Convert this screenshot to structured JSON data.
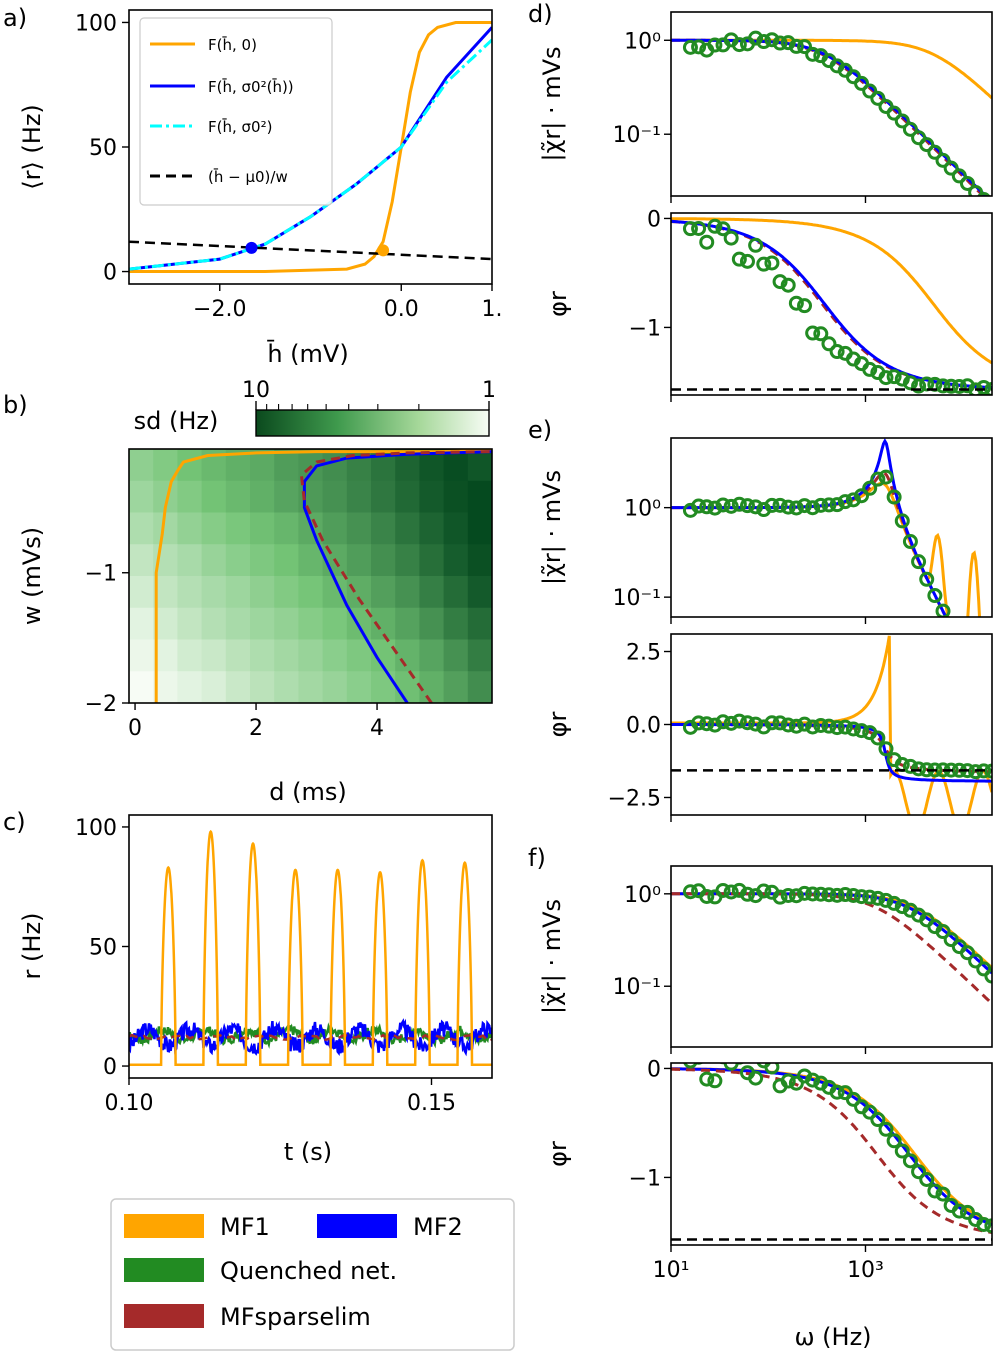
{
  "colors": {
    "mf1": "#FFA500",
    "mf2": "#0000FF",
    "quenched": "#228B22",
    "mfsparse": "#A52A2A",
    "cyan": "#00FFFF",
    "black": "#000000"
  },
  "chart_data": [
    {
      "panel": "a",
      "panel_label": "a)",
      "type": "line",
      "xlabel": "h̄ (mV)",
      "ylabel": "⟨r⟩ (Hz)",
      "xlim": [
        -3.0,
        1.0
      ],
      "ylim": [
        -5,
        105
      ],
      "xticks": [
        -2.0,
        0.0,
        1.0
      ],
      "xtick_labels": [
        "−2.0",
        "0.0",
        "1."
      ],
      "yticks": [
        0,
        50,
        100
      ],
      "ytick_labels": [
        "0",
        "50",
        "100"
      ],
      "legend": [
        "F(h̄, 0)",
        "F(h̄, σ0²(h̄))",
        "F(h̄, σ0²)",
        "(h̄ − μ0)/w"
      ],
      "legend_placement": "top-left",
      "series": [
        {
          "name": "F(h̄, 0)",
          "x": [
            -3.0,
            -1.5,
            -0.6,
            -0.4,
            -0.3,
            -0.2,
            -0.1,
            0.0,
            0.1,
            0.2,
            0.3,
            0.4,
            0.6,
            1.0
          ],
          "y": [
            0,
            0,
            1,
            3,
            6,
            12,
            28,
            50,
            72,
            88,
            95,
            98,
            100,
            100
          ]
        },
        {
          "name": "F(h̄, σ0²(h̄))",
          "x": [
            -3.0,
            -2.5,
            -2.0,
            -1.5,
            -1.0,
            -0.5,
            0.0,
            0.5,
            1.0
          ],
          "y": [
            1,
            3,
            5,
            11,
            22,
            35,
            50,
            78,
            98
          ]
        },
        {
          "name": "F(h̄, σ0²)",
          "x": [
            -3.0,
            -2.5,
            -2.0,
            -1.5,
            -1.0,
            -0.5,
            0.0,
            0.5,
            1.0
          ],
          "y": [
            1,
            3,
            5,
            11,
            22,
            35,
            50,
            76,
            93
          ]
        },
        {
          "name": "(h̄ − μ0)/w",
          "x": [
            -3.0,
            1.0
          ],
          "y": [
            12,
            5
          ]
        }
      ],
      "points": [
        {
          "name": "MF2 fixed point",
          "x": -1.65,
          "y": 9.5,
          "color": "mf2"
        },
        {
          "name": "MF1 fixed point",
          "x": -0.2,
          "y": 8.5,
          "color": "mf1"
        }
      ]
    },
    {
      "panel": "b",
      "panel_label": "b)",
      "type": "heatmap",
      "xlabel": "d (ms)",
      "ylabel": "w (mVs)",
      "xlim": [
        -0.1,
        5.9
      ],
      "ylim": [
        -2.0,
        -0.05
      ],
      "xticks": [
        0,
        2,
        4
      ],
      "yticks": [
        -2,
        -1
      ],
      "ytick_labels": [
        "−2",
        "−1"
      ],
      "colorbar_label": "sd (Hz)",
      "colorbar_ticks": [
        "10",
        "1"
      ],
      "columns_d": [
        0.2,
        0.6,
        1.0,
        1.4,
        1.8,
        2.2,
        2.6,
        3.0,
        3.4,
        3.8,
        4.2,
        4.6,
        5.0,
        5.4,
        5.75
      ],
      "rows_w": [
        -0.2,
        -0.45,
        -0.7,
        -0.95,
        -1.2,
        -1.45,
        -1.7,
        -1.9
      ],
      "sd_values": [
        [
          2.5,
          2.8,
          3.2,
          3.5,
          3.8,
          4.0,
          4.5,
          4.8,
          5.2,
          5.8,
          6.5,
          7.5,
          8.5,
          9.2,
          8.5
        ],
        [
          2.2,
          2.5,
          2.8,
          3.2,
          3.5,
          3.8,
          4.2,
          4.6,
          5.0,
          5.6,
          6.3,
          7.2,
          8.2,
          9.0,
          9.5
        ],
        [
          1.9,
          2.1,
          2.4,
          2.7,
          3.0,
          3.3,
          3.6,
          4.0,
          4.5,
          5.0,
          5.6,
          6.5,
          7.5,
          8.5,
          9.5
        ],
        [
          1.6,
          1.8,
          2.0,
          2.3,
          2.6,
          2.9,
          3.2,
          3.6,
          4.0,
          4.5,
          5.1,
          5.8,
          6.8,
          8.0,
          9.0
        ],
        [
          1.4,
          1.6,
          1.8,
          2.0,
          2.2,
          2.5,
          2.8,
          3.1,
          3.5,
          3.9,
          4.4,
          5.0,
          5.9,
          7.0,
          8.2
        ],
        [
          1.2,
          1.4,
          1.6,
          1.8,
          2.0,
          2.2,
          2.4,
          2.7,
          3.0,
          3.4,
          3.8,
          4.3,
          5.0,
          6.0,
          7.0
        ],
        [
          1.1,
          1.2,
          1.4,
          1.5,
          1.7,
          1.9,
          2.1,
          2.3,
          2.6,
          2.9,
          3.2,
          3.7,
          4.2,
          5.0,
          6.0
        ],
        [
          1.0,
          1.1,
          1.2,
          1.3,
          1.5,
          1.7,
          1.9,
          2.1,
          2.3,
          2.6,
          2.9,
          3.3,
          3.8,
          4.4,
          5.2
        ]
      ],
      "series": [
        {
          "name": "MF1",
          "d": [
            0.35,
            0.35,
            0.45,
            0.5,
            0.55,
            0.6,
            0.7,
            0.8,
            1.2,
            2.0,
            3.0,
            4.0,
            5.0,
            5.9
          ],
          "w": [
            -2.0,
            -1.0,
            -0.7,
            -0.5,
            -0.4,
            -0.3,
            -0.22,
            -0.15,
            -0.1,
            -0.08,
            -0.07,
            -0.07,
            -0.07,
            -0.06
          ]
        },
        {
          "name": "MF2",
          "d": [
            4.5,
            4.0,
            3.5,
            3.0,
            2.8,
            2.8,
            3.0,
            3.5,
            4.5,
            5.9
          ],
          "w": [
            -2.0,
            -1.65,
            -1.25,
            -0.75,
            -0.5,
            -0.3,
            -0.18,
            -0.12,
            -0.09,
            -0.07
          ]
        },
        {
          "name": "MFsparselim",
          "d": [
            4.9,
            4.3,
            3.7,
            3.1,
            2.8,
            2.75,
            3.0,
            3.6,
            4.5,
            5.9
          ],
          "w": [
            -2.0,
            -1.6,
            -1.2,
            -0.75,
            -0.45,
            -0.25,
            -0.15,
            -0.1,
            -0.08,
            -0.07
          ]
        }
      ]
    },
    {
      "panel": "c",
      "panel_label": "c)",
      "type": "line",
      "xlabel": "t (s)",
      "ylabel": "r (Hz)",
      "xlim": [
        0.1,
        0.16
      ],
      "ylim": [
        -5,
        105
      ],
      "xticks": [
        0.1,
        0.15
      ],
      "xtick_labels": [
        "0.10",
        "0.15"
      ],
      "yticks": [
        0,
        50,
        100
      ],
      "burst_times": [
        0.1065,
        0.1135,
        0.1205,
        0.1275,
        0.1345,
        0.1415,
        0.1485,
        0.1555
      ],
      "burst_peaks": [
        83,
        98,
        93,
        82,
        82,
        81,
        86,
        85
      ],
      "fluctuation_means": {
        "MF2": 12,
        "Quenched net.": 13,
        "MFsparselim": 12
      }
    },
    {
      "panel": "d",
      "panel_label": "d)",
      "type": "line",
      "xscale": "log",
      "xlim": [
        10,
        20000
      ],
      "mag_ylabel": "|χ̃r| · mVs",
      "mag_yticks": [
        "10⁰",
        "10⁻¹"
      ],
      "phase_ylabel": "φr",
      "phase_yticks": [
        0,
        -1
      ],
      "phase_ylim": [
        -1.62,
        0.05
      ],
      "mag_ylim": [
        0.022,
        2.0
      ],
      "mag_series": [
        {
          "name": "MF1",
          "fc": 5000,
          "order": 1,
          "shift": 1.0
        },
        {
          "name": "MF2",
          "fc": 380,
          "order": 1,
          "shift": 1.0
        },
        {
          "name": "MFsparselim",
          "fc": 360,
          "order": 1,
          "shift": 1.0
        },
        {
          "name": "Quenched net.",
          "fc": 330,
          "order": 1,
          "shift": 1.0
        }
      ],
      "phase_asymptote": -1.57
    },
    {
      "panel": "e",
      "panel_label": "e)",
      "type": "line",
      "xscale": "log",
      "xlim": [
        10,
        20000
      ],
      "mag_ylabel": "|χ̃r| · mVs",
      "mag_yticks": [
        "10⁰",
        "10⁻¹"
      ],
      "mag_ylim": [
        0.06,
        6.0
      ],
      "phase_ylabel": "φr",
      "phase_yticks": [
        2.5,
        0.0,
        -2.5
      ],
      "phase_ytick_labels": [
        "2.5",
        "0.0",
        "−2.5"
      ],
      "phase_ylim": [
        -3.1,
        3.1
      ],
      "resonance_hz": 1600,
      "mag_peaks": {
        "MF1": 1.8,
        "MF2": 5.5,
        "MFsparselim": 2.4,
        "Quenched net.": 2.2
      },
      "phase_asymptote": -1.57
    },
    {
      "panel": "f",
      "panel_label": "f)",
      "type": "line",
      "xscale": "log",
      "xlim": [
        10,
        20000
      ],
      "xticks": [
        10,
        1000
      ],
      "xtick_labels": [
        "10¹",
        "10³"
      ],
      "xlabel": "ω (Hz)",
      "mag_ylabel": "|χ̃r| · mVs",
      "mag_yticks": [
        "10⁰",
        "10⁻¹"
      ],
      "mag_ylim": [
        0.022,
        2.0
      ],
      "phase_ylabel": "φr",
      "phase_yticks": [
        0,
        -1
      ],
      "phase_ylim": [
        -1.62,
        0.05
      ],
      "mag_series": [
        {
          "name": "MF1",
          "fc": 3200
        },
        {
          "name": "MF2",
          "fc": 2800
        },
        {
          "name": "MFsparselim",
          "fc": 1300
        },
        {
          "name": "Quenched net.",
          "fc": 2600
        }
      ],
      "phase_asymptote": -1.57
    }
  ],
  "legend": {
    "items": [
      "MF1",
      "MF2",
      "Quenched net.",
      "MFsparselim"
    ]
  }
}
